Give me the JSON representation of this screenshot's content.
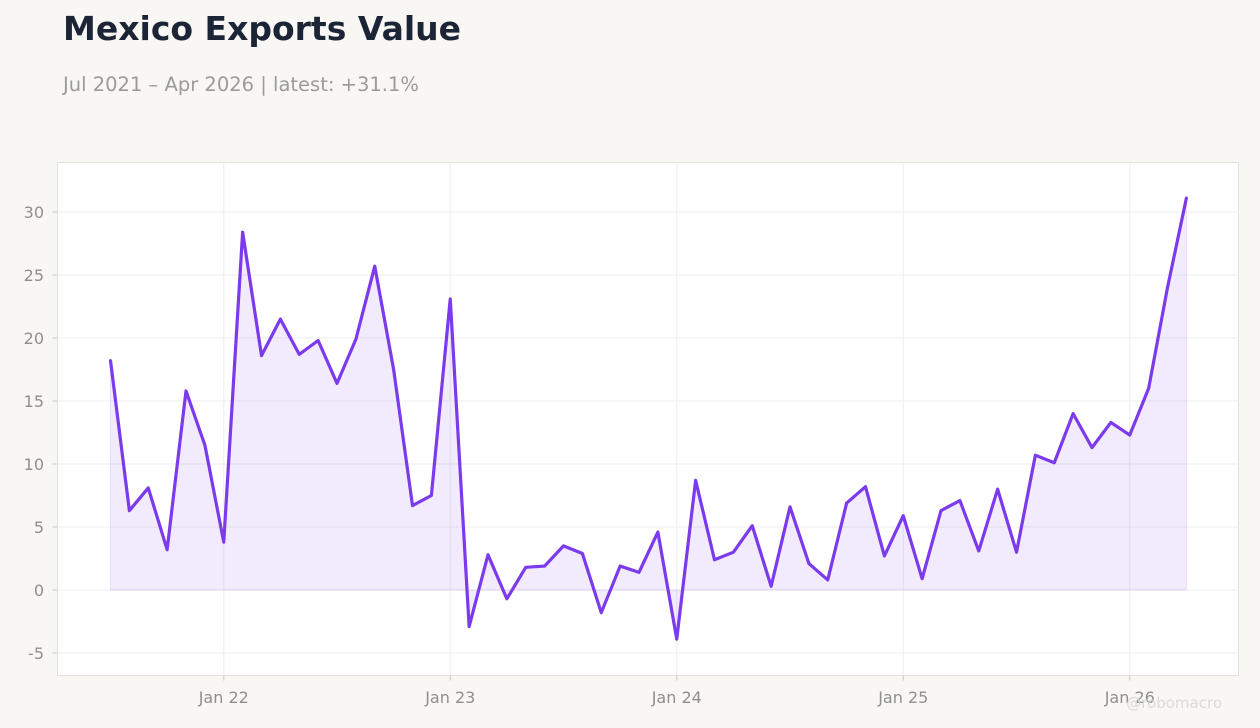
{
  "chart_data": {
    "type": "area",
    "title": "Mexico Exports Value",
    "subtitle": "Jul 2021 – Apr 2026 | latest: +31.1%",
    "xlabel": "",
    "ylabel": "",
    "x_start": "2021-07",
    "x": [
      "Jul 21",
      "Aug 21",
      "Sep 21",
      "Oct 21",
      "Nov 21",
      "Dec 21",
      "Jan 22",
      "Feb 22",
      "Mar 22",
      "Apr 22",
      "May 22",
      "Jun 22",
      "Jul 22",
      "Aug 22",
      "Sep 22",
      "Oct 22",
      "Nov 22",
      "Dec 22",
      "Jan 23",
      "Feb 23",
      "Mar 23",
      "Apr 23",
      "May 23",
      "Jun 23",
      "Jul 23",
      "Aug 23",
      "Sep 23",
      "Oct 23",
      "Nov 23",
      "Dec 23",
      "Jan 24",
      "Feb 24",
      "Mar 24",
      "Apr 24",
      "May 24",
      "Jun 24",
      "Jul 24",
      "Aug 24",
      "Sep 24",
      "Oct 24",
      "Nov 24",
      "Dec 24",
      "Jan 25",
      "Feb 25",
      "Mar 25",
      "Apr 25",
      "May 25",
      "Jun 25",
      "Jul 25",
      "Aug 25",
      "Sep 25",
      "Oct 25",
      "Nov 25",
      "Dec 25",
      "Jan 26",
      "Feb 26",
      "Mar 26",
      "Apr 26"
    ],
    "values": [
      18.2,
      6.3,
      8.1,
      3.2,
      15.8,
      11.5,
      3.8,
      28.4,
      18.6,
      21.5,
      18.7,
      19.8,
      16.4,
      19.9,
      25.7,
      17.5,
      6.7,
      7.5,
      23.1,
      -2.9,
      2.8,
      -0.7,
      1.8,
      1.9,
      3.5,
      2.9,
      -1.8,
      1.9,
      1.4,
      4.6,
      -3.9,
      8.7,
      2.4,
      3.0,
      5.1,
      0.3,
      6.6,
      2.1,
      0.8,
      6.9,
      8.2,
      2.7,
      5.9,
      0.9,
      6.3,
      7.1,
      3.1,
      8.0,
      3.0,
      10.7,
      10.1,
      14.0,
      11.3,
      13.3,
      12.3,
      16.0,
      24.0,
      31.1
    ],
    "ylim": [
      -6.5,
      33.7
    ],
    "yticks": [
      -5,
      0,
      5,
      10,
      15,
      20,
      25,
      30
    ],
    "xticks": [
      {
        "label": "Jan 22",
        "index": 6
      },
      {
        "label": "Jan 23",
        "index": 18
      },
      {
        "label": "Jan 24",
        "index": 30
      },
      {
        "label": "Jan 25",
        "index": 42
      },
      {
        "label": "Jan 26",
        "index": 54
      }
    ],
    "grid": true,
    "line_color": "#7c3aed",
    "fill_color": "#7c3aed"
  },
  "watermark": "@robomacro"
}
